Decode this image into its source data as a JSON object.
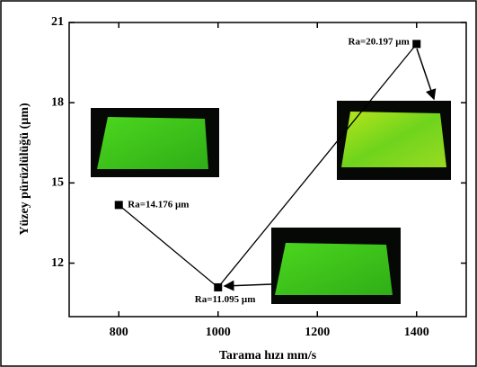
{
  "chart_data": {
    "type": "line",
    "xlabel": "Tarama hızı mm/s",
    "ylabel": "Yüzey pürüzlülüğü (µm)",
    "x": [
      800,
      1000,
      1400
    ],
    "series": [
      {
        "color": "#000000",
        "values": [
          14.176,
          11.095,
          20.197
        ],
        "value_labels": [
          "Ra=14.176  µm",
          "Ra=11.095  µm",
          "Ra=20.197  µm"
        ]
      }
    ],
    "xlim": [
      700,
      1500
    ],
    "xticks": [
      800,
      1000,
      1200,
      1400
    ],
    "ylim": [
      10,
      21
    ],
    "yticks": [
      12,
      15,
      18,
      21
    ]
  }
}
